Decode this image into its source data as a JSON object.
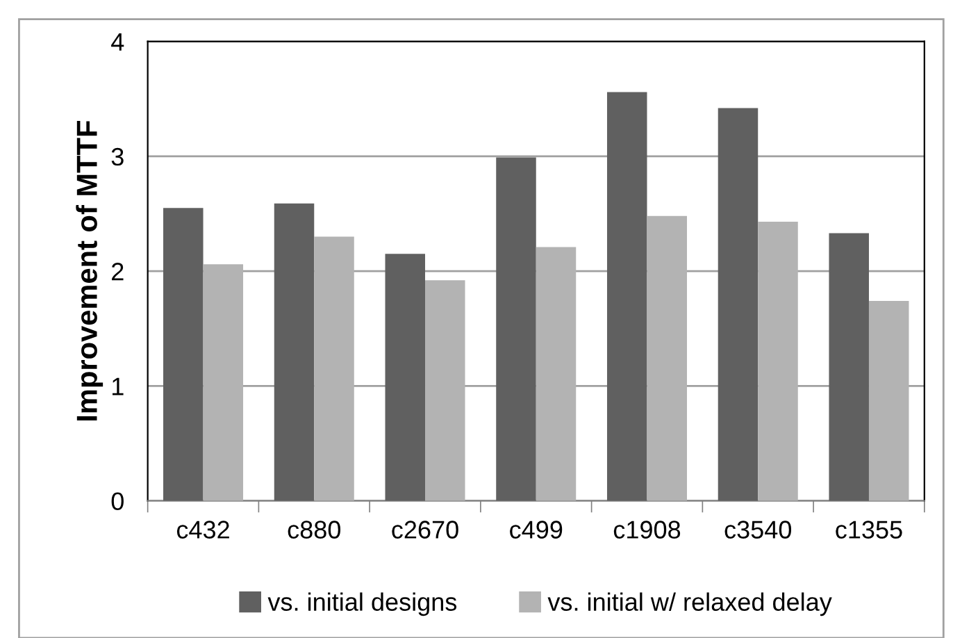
{
  "chart_data": {
    "type": "bar",
    "ylabel": "Improvement of MTTF",
    "categories": [
      "c432",
      "c880",
      "c2670",
      "c499",
      "c1908",
      "c3540",
      "c1355"
    ],
    "series": [
      {
        "name": "vs. initial designs",
        "color": "#606060",
        "values": [
          2.55,
          2.59,
          2.15,
          2.99,
          3.56,
          3.42,
          2.33
        ]
      },
      {
        "name": "vs. initial w/ relaxed delay",
        "color": "#b3b3b3",
        "values": [
          2.06,
          2.3,
          1.92,
          2.21,
          2.48,
          2.43,
          1.74
        ]
      }
    ],
    "ylim": [
      0,
      4
    ],
    "yticks": [
      0,
      1,
      2,
      3,
      4
    ],
    "grid": "y",
    "legend": "bottom"
  }
}
